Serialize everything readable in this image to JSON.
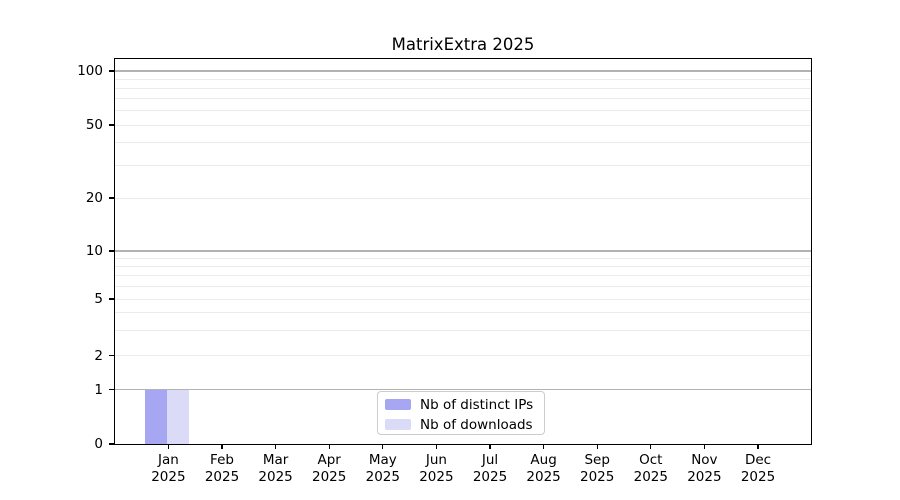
{
  "chart_data": {
    "type": "bar",
    "title": "MatrixExtra 2025",
    "categories": [
      {
        "month": "Jan",
        "year": "2025"
      },
      {
        "month": "Feb",
        "year": "2025"
      },
      {
        "month": "Mar",
        "year": "2025"
      },
      {
        "month": "Apr",
        "year": "2025"
      },
      {
        "month": "May",
        "year": "2025"
      },
      {
        "month": "Jun",
        "year": "2025"
      },
      {
        "month": "Jul",
        "year": "2025"
      },
      {
        "month": "Aug",
        "year": "2025"
      },
      {
        "month": "Sep",
        "year": "2025"
      },
      {
        "month": "Oct",
        "year": "2025"
      },
      {
        "month": "Nov",
        "year": "2025"
      },
      {
        "month": "Dec",
        "year": "2025"
      }
    ],
    "series": [
      {
        "name": "Nb of distinct IPs",
        "color": "#a6a6f2",
        "values": [
          1,
          0,
          0,
          0,
          0,
          0,
          0,
          0,
          0,
          0,
          0,
          0
        ]
      },
      {
        "name": "Nb of downloads",
        "color": "#dbdbf7",
        "values": [
          1,
          0,
          0,
          0,
          0,
          0,
          0,
          0,
          0,
          0,
          0,
          0
        ]
      }
    ],
    "y_axis": {
      "scale": "linear-below-1-log-above",
      "ticks": [
        0,
        1,
        2,
        5,
        10,
        20,
        50,
        100
      ],
      "minor_gridlines": [
        3,
        4,
        6,
        7,
        8,
        9,
        30,
        40,
        60,
        70,
        80,
        90
      ],
      "major_gridlines": [
        1,
        10,
        100
      ],
      "ylim": [
        0,
        117
      ]
    },
    "xlabel": "",
    "ylabel": "",
    "grid": true,
    "legend_position": "lower-center",
    "colors": {
      "major_grid": "#b2b2b2",
      "minor_grid": "#ececec",
      "axis": "#000000"
    }
  }
}
